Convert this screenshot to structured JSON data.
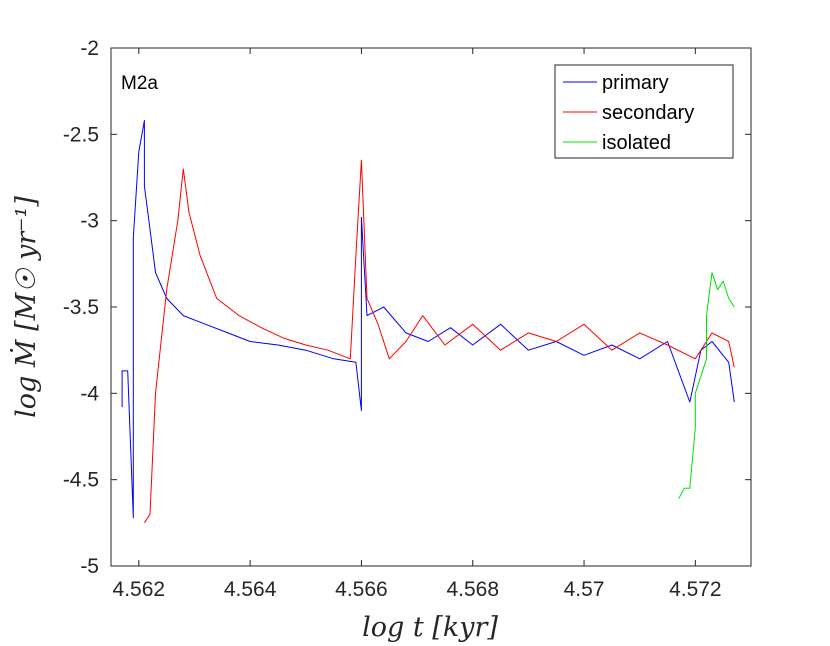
{
  "chart_data": {
    "type": "line",
    "panel_label": "M2a",
    "xlabel": "log t [kyr]",
    "ylabel": "log Ṁ [M☉ yr⁻¹]",
    "xlim": [
      4.5615,
      4.573
    ],
    "ylim": [
      -5,
      -2
    ],
    "xticks": [
      4.562,
      4.564,
      4.566,
      4.568,
      4.57,
      4.572
    ],
    "xtick_labels": [
      "4.562",
      "4.564",
      "4.566",
      "4.568",
      "4.57",
      "4.572"
    ],
    "yticks": [
      -5,
      -4.5,
      -4,
      -3.5,
      -3,
      -2.5,
      -2
    ],
    "ytick_labels": [
      "-5",
      "-4.5",
      "-4",
      "-3.5",
      "-3",
      "-2.5",
      "-2"
    ],
    "legend_position": "top-right",
    "series": [
      {
        "name": "primary",
        "color": "#0000ff",
        "x": [
          4.5617,
          4.5617,
          4.5618,
          4.5619,
          4.5619,
          4.562,
          4.5621,
          4.5621,
          4.5622,
          4.5623,
          4.5625,
          4.5628,
          4.5632,
          4.5636,
          4.564,
          4.5645,
          4.565,
          4.5655,
          4.5659,
          4.566,
          4.566,
          4.5661,
          4.5664,
          4.5668,
          4.5672,
          4.5676,
          4.568,
          4.5685,
          4.569,
          4.5695,
          4.57,
          4.5705,
          4.571,
          4.5715,
          4.5719,
          4.5721,
          4.5723,
          4.5726,
          4.5727
        ],
        "y": [
          -4.08,
          -3.87,
          -3.87,
          -4.72,
          -3.1,
          -2.6,
          -2.42,
          -2.8,
          -3.05,
          -3.3,
          -3.45,
          -3.55,
          -3.6,
          -3.65,
          -3.7,
          -3.72,
          -3.75,
          -3.8,
          -3.82,
          -4.1,
          -2.98,
          -3.55,
          -3.5,
          -3.65,
          -3.7,
          -3.62,
          -3.72,
          -3.6,
          -3.75,
          -3.7,
          -3.78,
          -3.72,
          -3.8,
          -3.7,
          -4.05,
          -3.75,
          -3.7,
          -3.82,
          -4.05
        ]
      },
      {
        "name": "secondary",
        "color": "#ff0000",
        "x": [
          4.5621,
          4.5622,
          4.5623,
          4.5625,
          4.5627,
          4.5628,
          4.5629,
          4.5631,
          4.5634,
          4.5638,
          4.5642,
          4.5646,
          4.565,
          4.5654,
          4.5658,
          4.5659,
          4.566,
          4.5661,
          4.5663,
          4.5665,
          4.5668,
          4.5671,
          4.5675,
          4.568,
          4.5685,
          4.569,
          4.5695,
          4.57,
          4.5705,
          4.571,
          4.5715,
          4.572,
          4.5723,
          4.5726,
          4.5727
        ],
        "y": [
          -4.75,
          -4.7,
          -4.0,
          -3.4,
          -3.0,
          -2.7,
          -2.95,
          -3.2,
          -3.45,
          -3.55,
          -3.62,
          -3.68,
          -3.72,
          -3.75,
          -3.8,
          -3.2,
          -2.65,
          -3.45,
          -3.6,
          -3.8,
          -3.7,
          -3.55,
          -3.72,
          -3.6,
          -3.75,
          -3.65,
          -3.7,
          -3.6,
          -3.75,
          -3.65,
          -3.72,
          -3.8,
          -3.65,
          -3.7,
          -3.85
        ]
      },
      {
        "name": "isolated",
        "color": "#00e000",
        "x": [
          4.5717,
          4.5718,
          4.5719,
          4.572,
          4.572,
          4.5721,
          4.5722,
          4.5722,
          4.5723,
          4.5724,
          4.5725,
          4.5726,
          4.5727
        ],
        "y": [
          -4.61,
          -4.55,
          -4.55,
          -4.2,
          -4.0,
          -3.9,
          -3.8,
          -3.55,
          -3.3,
          -3.4,
          -3.35,
          -3.45,
          -3.5
        ]
      }
    ]
  }
}
